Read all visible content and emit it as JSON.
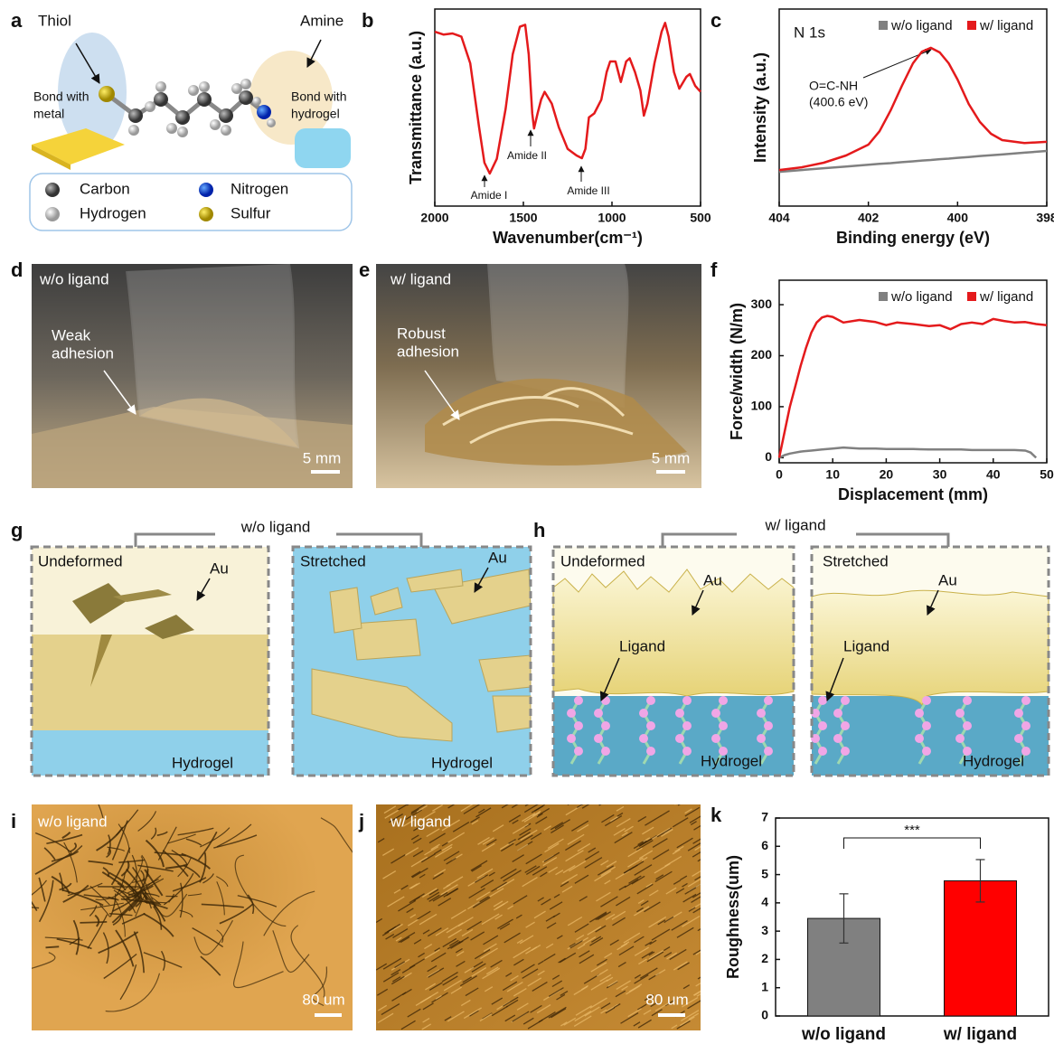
{
  "panels": {
    "letters": [
      "a",
      "b",
      "c",
      "d",
      "e",
      "f",
      "g",
      "h",
      "i",
      "j",
      "k"
    ],
    "molecule": {
      "thiol": "Thiol",
      "amine": "Amine",
      "bond_metal": [
        "Bond with",
        "metal"
      ],
      "bond_hydrogel": [
        "Bond with",
        "hydrogel"
      ],
      "legend": [
        "Carbon",
        "Hydrogen",
        "Nitrogen",
        "Sulfur"
      ]
    },
    "photos": {
      "d": {
        "tag": "w/o ligand",
        "note": [
          "Weak",
          "adhesion"
        ],
        "scale": "5 mm"
      },
      "e": {
        "tag": "w/ ligand",
        "note": [
          "Robust",
          "adhesion"
        ],
        "scale": "5 mm"
      }
    },
    "schematic": {
      "g": {
        "title": "w/o ligand",
        "left": {
          "state": "Undeformed",
          "au": "Au",
          "substrate": "Hydrogel"
        },
        "right": {
          "state": "Stretched",
          "au": "Au",
          "substrate": "Hydrogel"
        }
      },
      "h": {
        "title": "w/ ligand",
        "left": {
          "state": "Undeformed",
          "au": "Au",
          "ligand": "Ligand",
          "substrate": "Hydrogel"
        },
        "right": {
          "state": "Stretched",
          "au": "Au",
          "ligand": "Ligand",
          "substrate": "Hydrogel"
        }
      }
    },
    "micrographs": {
      "i": {
        "tag": "w/o ligand",
        "scale": "80 um"
      },
      "j": {
        "tag": "w/ ligand",
        "scale": "80 um"
      }
    }
  },
  "chart_data": [
    {
      "type": "line",
      "xlabel": "Wavenumber(cm⁻¹)",
      "ylabel": "Transmittance (a.u.)",
      "xlim": [
        2000,
        500
      ],
      "xticks": [
        2000,
        1500,
        1000,
        500
      ],
      "ylim": [
        0,
        100
      ],
      "annotations": [
        "Amide I",
        "Amide II",
        "Amide III"
      ],
      "x": [
        2000,
        1950,
        1900,
        1850,
        1800,
        1750,
        1720,
        1690,
        1650,
        1600,
        1560,
        1520,
        1490,
        1470,
        1450,
        1440,
        1420,
        1400,
        1380,
        1340,
        1300,
        1250,
        1200,
        1170,
        1150,
        1130,
        1100,
        1060,
        1030,
        1010,
        980,
        950,
        920,
        900,
        870,
        840,
        820,
        800,
        760,
        720,
        700,
        680,
        650,
        620,
        580,
        560,
        530,
        500
      ],
      "series": [
        {
          "color": "#e41a1c",
          "values": [
            88.5,
            87,
            87.6,
            86,
            72.5,
            40,
            22,
            16.5,
            24,
            49.5,
            77,
            91,
            92,
            77,
            47,
            39.4,
            47,
            54,
            58,
            52,
            40,
            29,
            25.7,
            24.3,
            29,
            45,
            47,
            54,
            68,
            73.4,
            73.4,
            63,
            73.4,
            75,
            68,
            58.7,
            45.9,
            52,
            72.5,
            88.5,
            93,
            86,
            68,
            59.6,
            65.6,
            67,
            61,
            58
          ]
        }
      ]
    },
    {
      "type": "line",
      "title": "N 1s",
      "xlabel": "Binding energy (eV)",
      "ylabel": "Intensity (a.u.)",
      "xlim": [
        404,
        398
      ],
      "xticks": [
        404,
        402,
        400,
        398
      ],
      "ylim": [
        0,
        100
      ],
      "legend": "upper right",
      "annotations": [
        "O=C-NH",
        "(400.6 eV)"
      ],
      "x": [
        404,
        403.5,
        403,
        402.5,
        402,
        401.75,
        401.5,
        401.25,
        401,
        400.8,
        400.6,
        400.4,
        400.2,
        400,
        399.75,
        399.5,
        399.25,
        399,
        398.5,
        398
      ],
      "series": [
        {
          "name": "w/o ligand",
          "color": "#808080",
          "values": [
            17.4,
            18.3,
            19.2,
            20.1,
            21,
            21.4,
            21.8,
            22.3,
            22.7,
            23.1,
            23.4,
            23.8,
            24.1,
            24.5,
            24.9,
            25.4,
            25.8,
            26.2,
            27.1,
            28
          ]
        },
        {
          "name": "w/ ligand",
          "color": "#e41a1c",
          "values": [
            18.3,
            19.7,
            22,
            25.7,
            31.2,
            38,
            48.6,
            61,
            72.5,
            78.4,
            80.3,
            78,
            72.5,
            64.2,
            51.8,
            42.7,
            36.7,
            33.5,
            32,
            32.6
          ]
        }
      ]
    },
    {
      "type": "line",
      "xlabel": "Displacement (mm)",
      "ylabel": "Force/width (N/m)",
      "xlim": [
        0,
        50
      ],
      "xticks": [
        0,
        10,
        20,
        30,
        40,
        50
      ],
      "ylim": [
        -10,
        348
      ],
      "yticks": [
        0,
        100,
        200,
        300
      ],
      "legend": "upper right",
      "x": [
        0,
        1,
        2,
        3,
        4,
        5,
        6,
        7,
        8,
        9,
        10,
        12,
        15,
        18,
        20,
        22,
        25,
        28,
        30,
        32,
        34,
        36,
        38,
        40,
        42,
        44,
        46,
        47,
        48,
        50
      ],
      "series": [
        {
          "name": "w/o ligand",
          "color": "#808080",
          "values": [
            0,
            5,
            8,
            10,
            12,
            13,
            14,
            15,
            16,
            17,
            18,
            20,
            18,
            18,
            17,
            17,
            17,
            16,
            16,
            16,
            16,
            15,
            15,
            15,
            15,
            15,
            14,
            10,
            0,
            null
          ]
        },
        {
          "name": "w/ ligand",
          "color": "#e41a1c",
          "values": [
            0,
            50,
            100,
            140,
            180,
            215,
            245,
            265,
            275,
            278,
            276,
            265,
            270,
            266,
            260,
            265,
            262,
            258,
            260,
            252,
            262,
            265,
            262,
            272,
            268,
            265,
            266,
            264,
            262,
            260
          ]
        }
      ]
    },
    {
      "type": "bar",
      "ylabel": "Roughness(um)",
      "categories": [
        "w/o ligand",
        "w/ ligand"
      ],
      "values": [
        3.45,
        4.78
      ],
      "errors": [
        0.87,
        0.75
      ],
      "colors": [
        "#808080",
        "#ff0000"
      ],
      "ylim": [
        0,
        7
      ],
      "yticks": [
        0,
        1,
        2,
        3,
        4,
        5,
        6,
        7
      ],
      "annotation": "***"
    }
  ]
}
